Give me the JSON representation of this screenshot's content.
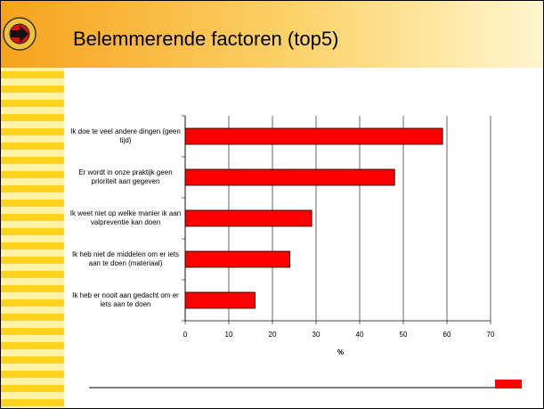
{
  "chart_data": {
    "type": "bar",
    "orientation": "horizontal",
    "title": "Belemmerende factoren (top5)",
    "categories": [
      "Ik doe te veel andere dingen (geen tijd)",
      "Er wordt in onze praktijk geen prioriteit aan gegeven",
      "Ik weet niet op welke manier ik aan valpreventie kan doen",
      "Ik heb niet de middelen om er iets aan te doen (materiaal)",
      "Ik heb er nooit aan gedacht om er iets aan te doen"
    ],
    "values": [
      59,
      48,
      29,
      24,
      16
    ],
    "color": "#ff0000",
    "xlabel": "%",
    "xlim": [
      0,
      70
    ],
    "xticks": [
      0,
      10,
      20,
      30,
      40,
      50,
      60,
      70
    ],
    "grid": true
  }
}
